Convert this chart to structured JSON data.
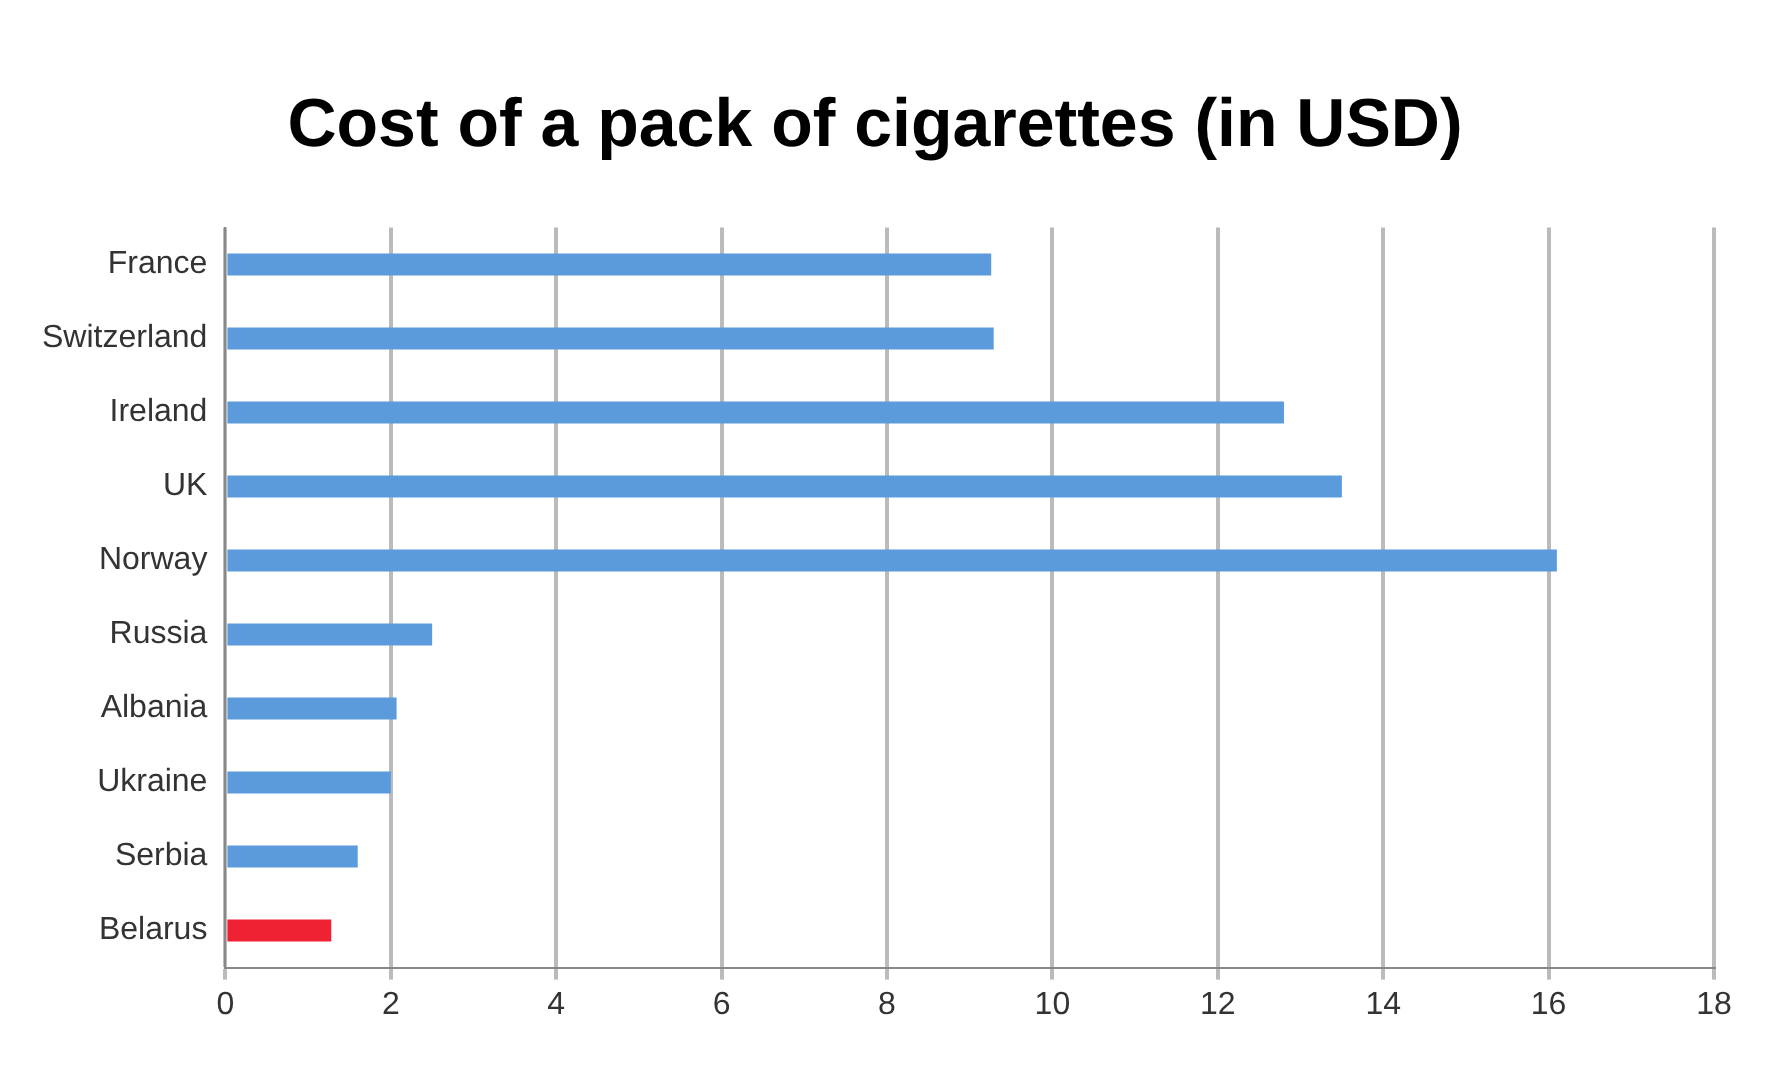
{
  "chart_data": {
    "type": "bar",
    "orientation": "horizontal",
    "title": "Cost of a pack of cigarettes (in USD)",
    "categories": [
      "France",
      "Switzerland",
      "Ireland",
      "UK",
      "Norway",
      "Russia",
      "Albania",
      "Ukraine",
      "Serbia",
      "Belarus"
    ],
    "values": [
      9.26,
      9.29,
      12.8,
      13.5,
      16.1,
      2.5,
      2.07,
      2.0,
      1.6,
      1.28
    ],
    "colors": [
      "#5b9bdc",
      "#5b9bdc",
      "#5b9bdc",
      "#5b9bdc",
      "#5b9bdc",
      "#5b9bdc",
      "#5b9bdc",
      "#5b9bdc",
      "#5b9bdc",
      "#ee2233"
    ],
    "xlim": [
      0,
      18
    ],
    "xticks": [
      0,
      2,
      4,
      6,
      8,
      10,
      12,
      14,
      16,
      18
    ],
    "grid": "x",
    "legend": false
  }
}
